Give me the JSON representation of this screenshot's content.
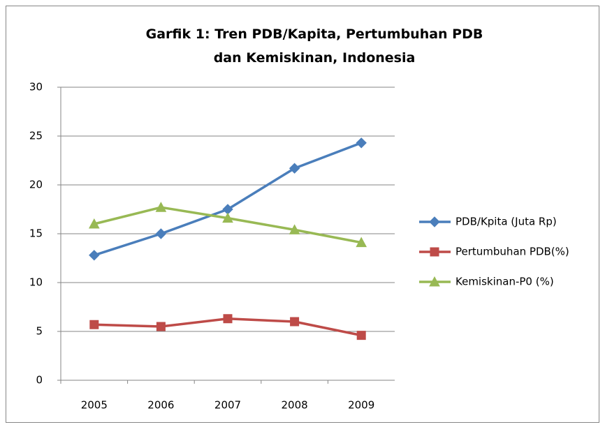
{
  "chart_data": {
    "type": "line",
    "title": "Garfik 1: Tren PDB/Kapita, Pertumbuhan PDB dan Kemiskinan, Indonesia",
    "categories": [
      "2005",
      "2006",
      "2007",
      "2008",
      "2009"
    ],
    "series": [
      {
        "name": "PDB/Kpita (Juta  Rp)",
        "color": "#4a7ebb",
        "marker": "diamond",
        "values": [
          12.8,
          15.0,
          17.5,
          21.7,
          24.3
        ]
      },
      {
        "name": "Pertumbuhan PDB(%)",
        "color": "#be4b48",
        "marker": "square",
        "values": [
          5.7,
          5.5,
          6.3,
          6.0,
          4.6
        ]
      },
      {
        "name": "Kemiskinan-P0 (%)",
        "color": "#98b954",
        "marker": "triangle",
        "values": [
          16.0,
          17.7,
          16.6,
          15.4,
          14.1
        ]
      }
    ],
    "ylim": [
      0,
      30
    ],
    "yticks": [
      0,
      5,
      10,
      15,
      20,
      25,
      30
    ],
    "grid": true,
    "legend": "right"
  }
}
